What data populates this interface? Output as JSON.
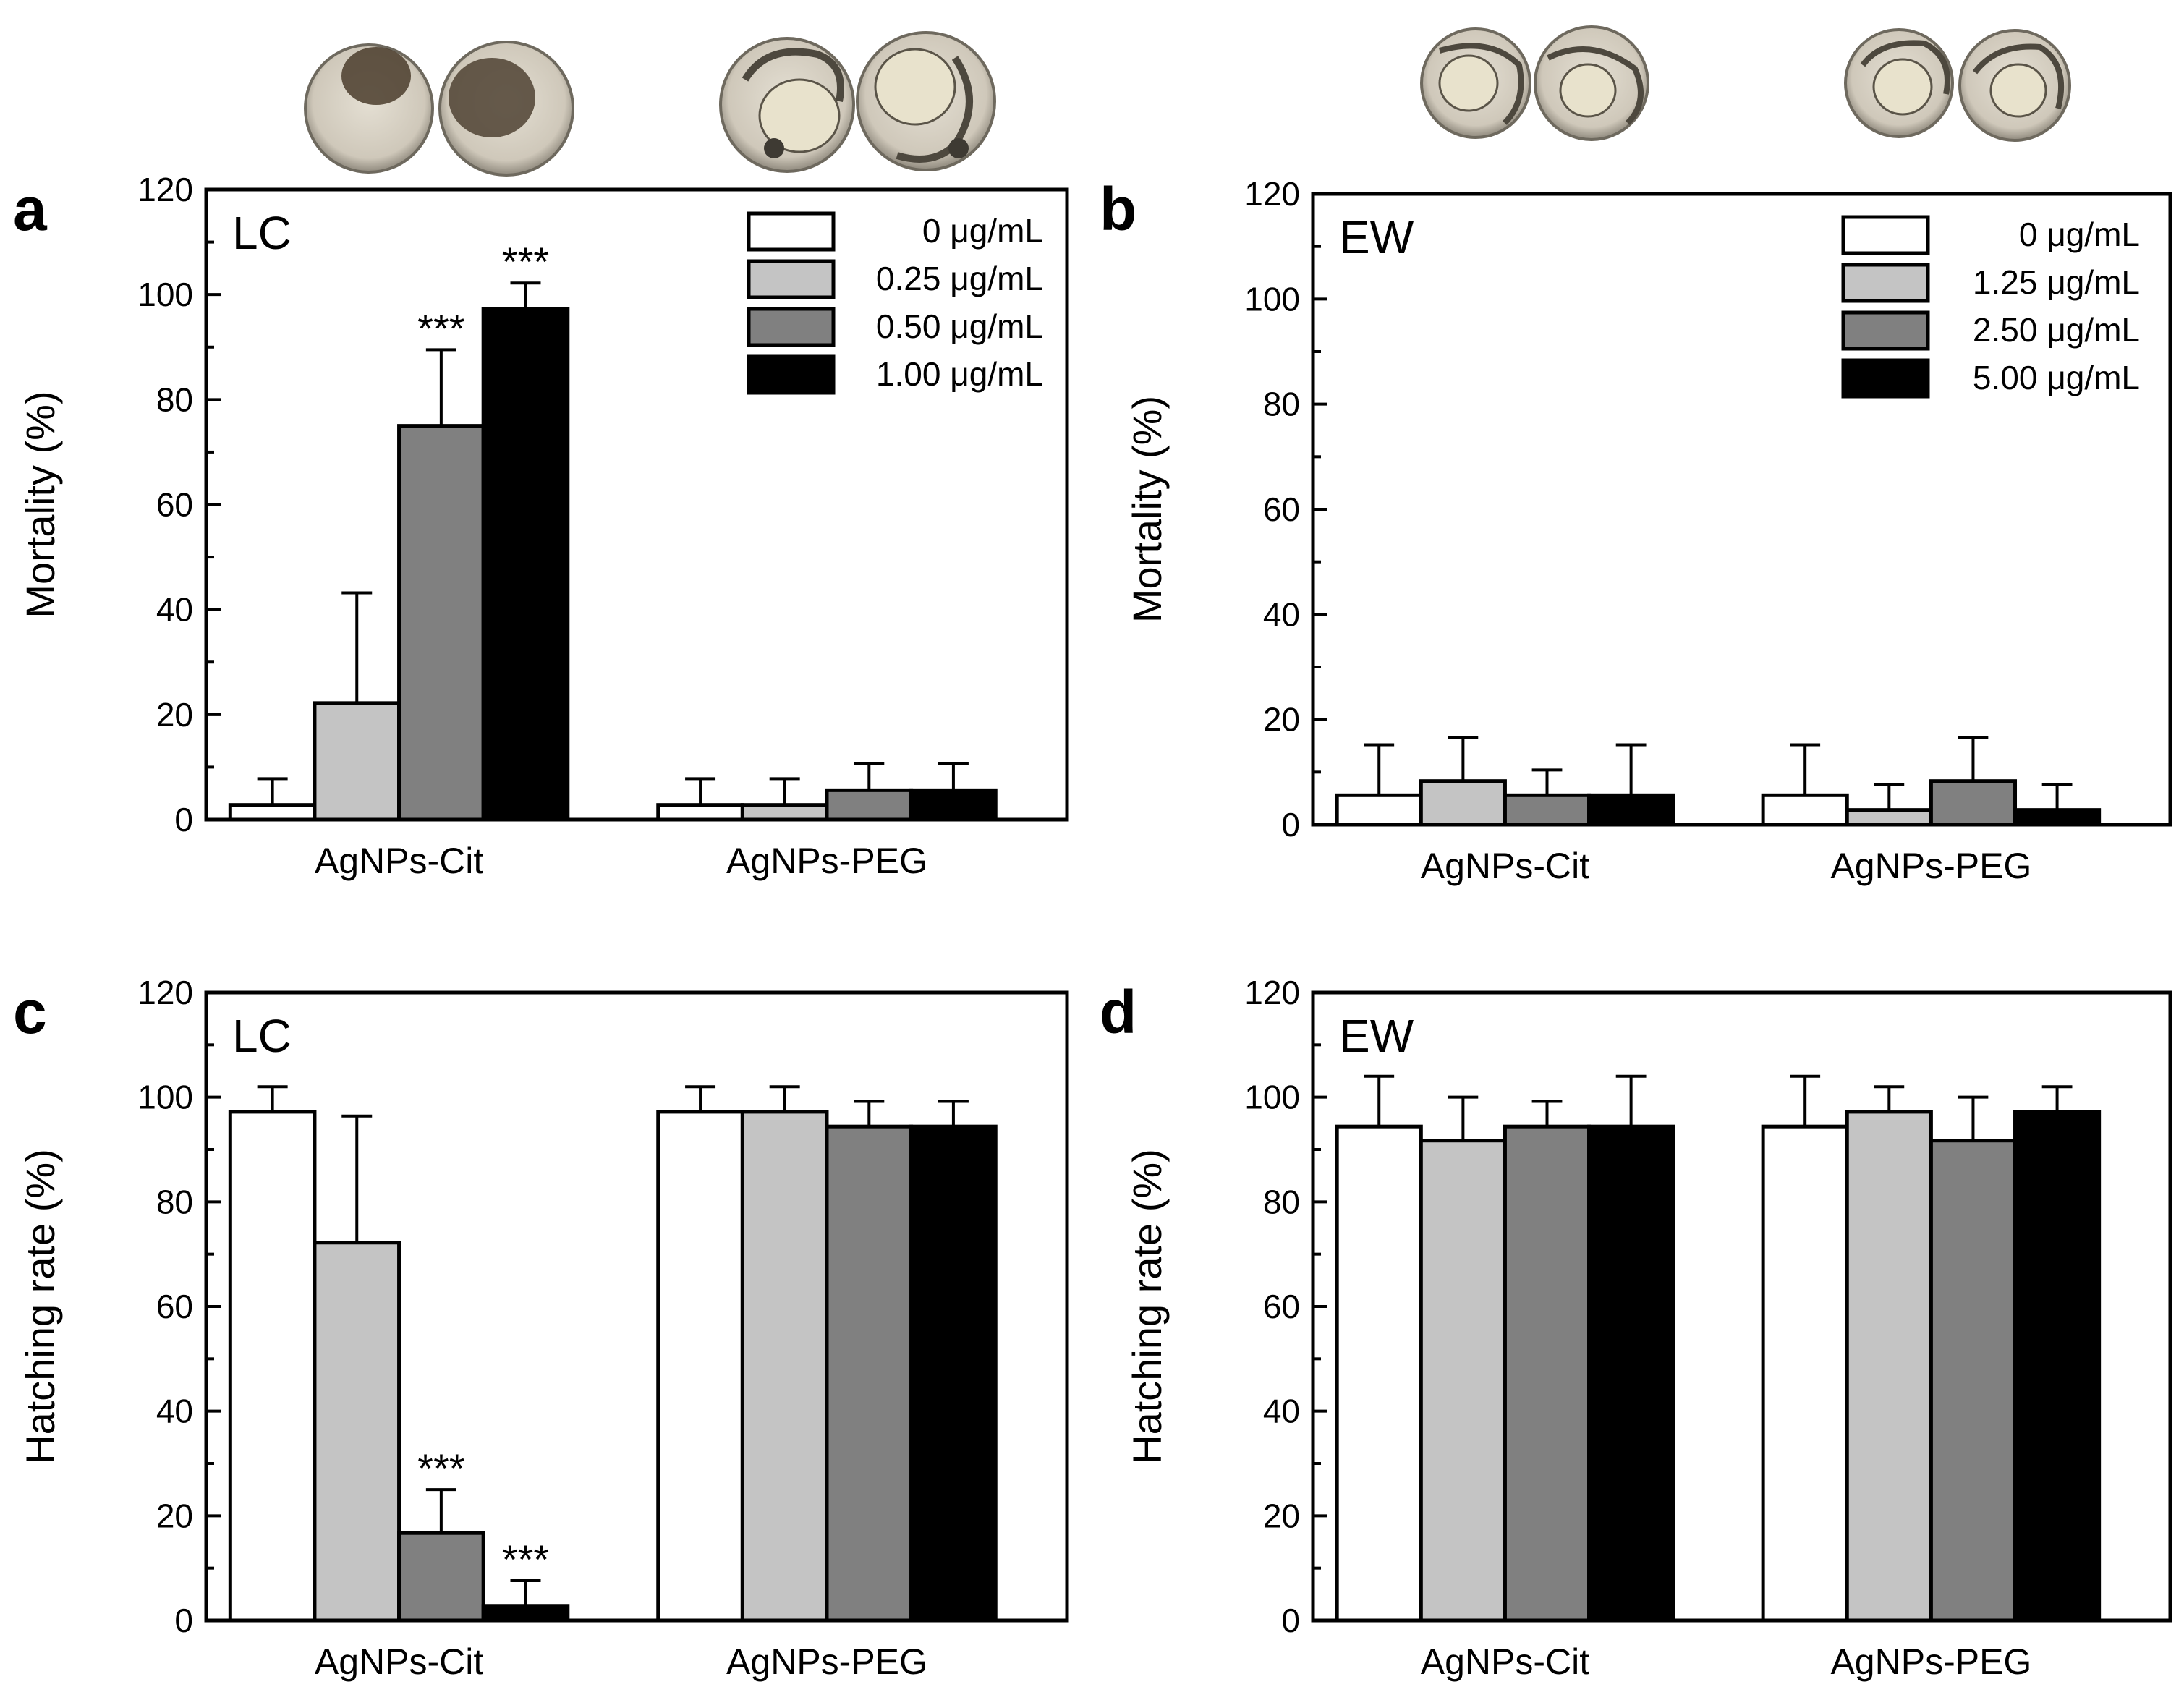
{
  "figure": {
    "groups": [
      "AgNPs-Cit",
      "AgNPs-PEG"
    ],
    "series_colors": [
      "#ffffff",
      "#c4c4c4",
      "#808080",
      "#000000"
    ]
  },
  "chart_data": [
    {
      "panel": "a",
      "type": "bar",
      "condition": "LC",
      "ylabel": "Mortality (%)",
      "ylim": [
        0,
        120
      ],
      "yticks": [
        0,
        20,
        40,
        60,
        80,
        100,
        120
      ],
      "categories": [
        "AgNPs-Cit",
        "AgNPs-PEG"
      ],
      "legend": [
        "0 μg/mL",
        "0.25 μg/mL",
        "0.50 μg/mL",
        "1.00 μg/mL"
      ],
      "series": [
        {
          "name": "0 μg/mL",
          "values": [
            2.8,
            2.8
          ],
          "errors": [
            5,
            5
          ],
          "stars": [
            "",
            ""
          ]
        },
        {
          "name": "0.25 μg/mL",
          "values": [
            22.2,
            2.8
          ],
          "errors": [
            21,
            5
          ],
          "stars": [
            "",
            ""
          ]
        },
        {
          "name": "0.50 μg/mL",
          "values": [
            75,
            5.6
          ],
          "errors": [
            14.5,
            5
          ],
          "stars": [
            "***",
            ""
          ]
        },
        {
          "name": "1.00 μg/mL",
          "values": [
            97.2,
            5.6
          ],
          "errors": [
            5,
            5
          ],
          "stars": [
            "***",
            ""
          ]
        }
      ]
    },
    {
      "panel": "b",
      "type": "bar",
      "condition": "EW",
      "ylabel": "Mortality (%)",
      "ylim": [
        0,
        120
      ],
      "yticks": [
        0,
        20,
        40,
        60,
        80,
        100,
        120
      ],
      "categories": [
        "AgNPs-Cit",
        "AgNPs-PEG"
      ],
      "legend": [
        "0 μg/mL",
        "1.25 μg/mL",
        "2.50 μg/mL",
        "5.00 μg/mL"
      ],
      "series": [
        {
          "name": "0 μg/mL",
          "values": [
            5.6,
            5.6
          ],
          "errors": [
            9.6,
            9.6
          ],
          "stars": [
            "",
            ""
          ]
        },
        {
          "name": "1.25 μg/mL",
          "values": [
            8.3,
            2.8
          ],
          "errors": [
            8.3,
            4.8
          ],
          "stars": [
            "",
            ""
          ]
        },
        {
          "name": "2.50 μg/mL",
          "values": [
            5.6,
            8.3
          ],
          "errors": [
            4.8,
            8.3
          ],
          "stars": [
            "",
            ""
          ]
        },
        {
          "name": "5.00 μg/mL",
          "values": [
            5.6,
            2.8
          ],
          "errors": [
            9.6,
            4.8
          ],
          "stars": [
            "",
            ""
          ]
        }
      ]
    },
    {
      "panel": "c",
      "type": "bar",
      "condition": "LC",
      "ylabel": "Hatching rate (%)",
      "ylim": [
        0,
        120
      ],
      "yticks": [
        0,
        20,
        40,
        60,
        80,
        100,
        120
      ],
      "categories": [
        "AgNPs-Cit",
        "AgNPs-PEG"
      ],
      "legend": [],
      "series": [
        {
          "name": "0 μg/mL",
          "values": [
            97.2,
            97.2
          ],
          "errors": [
            4.8,
            4.8
          ],
          "stars": [
            "",
            ""
          ]
        },
        {
          "name": "0.25 μg/mL",
          "values": [
            72.2,
            97.2
          ],
          "errors": [
            24.2,
            4.8
          ],
          "stars": [
            "",
            ""
          ]
        },
        {
          "name": "0.50 μg/mL",
          "values": [
            16.7,
            94.4
          ],
          "errors": [
            8.3,
            4.8
          ],
          "stars": [
            "***",
            ""
          ]
        },
        {
          "name": "1.00 μg/mL",
          "values": [
            2.8,
            94.4
          ],
          "errors": [
            4.8,
            4.8
          ],
          "stars": [
            "***",
            ""
          ]
        }
      ]
    },
    {
      "panel": "d",
      "type": "bar",
      "condition": "EW",
      "ylabel": "Hatching rate (%)",
      "ylim": [
        0,
        120
      ],
      "yticks": [
        0,
        20,
        40,
        60,
        80,
        100,
        120
      ],
      "categories": [
        "AgNPs-Cit",
        "AgNPs-PEG"
      ],
      "legend": [],
      "series": [
        {
          "name": "0 μg/mL",
          "values": [
            94.4,
            94.4
          ],
          "errors": [
            9.6,
            9.6
          ],
          "stars": [
            "",
            ""
          ]
        },
        {
          "name": "1.25 μg/mL",
          "values": [
            91.7,
            97.2
          ],
          "errors": [
            8.3,
            4.8
          ],
          "stars": [
            "",
            ""
          ]
        },
        {
          "name": "2.50 μg/mL",
          "values": [
            94.4,
            91.7
          ],
          "errors": [
            4.8,
            8.3
          ],
          "stars": [
            "",
            ""
          ]
        },
        {
          "name": "5.00 μg/mL",
          "values": [
            94.4,
            97.2
          ],
          "errors": [
            9.6,
            4.8
          ],
          "stars": [
            "",
            ""
          ]
        }
      ]
    }
  ]
}
